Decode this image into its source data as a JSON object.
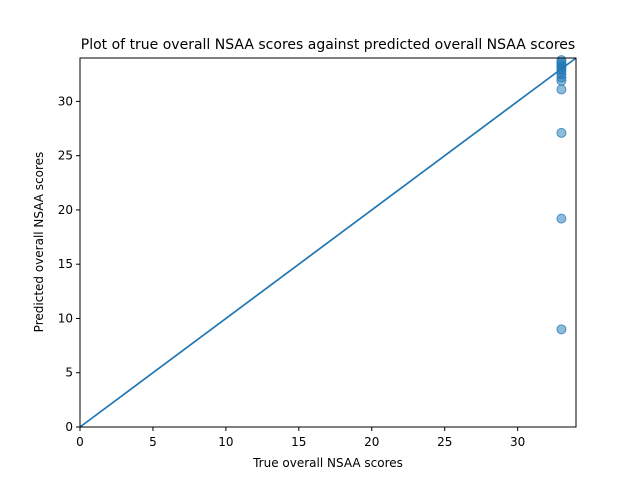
{
  "chart_data": {
    "type": "scatter",
    "title": "Plot of true overall NSAA scores against predicted overall NSAA scores",
    "xlabel": "True overall NSAA scores",
    "ylabel": "Predicted overall NSAA scores",
    "xlim": [
      0,
      34
    ],
    "ylim": [
      0,
      34
    ],
    "xticks": [
      0,
      5,
      10,
      15,
      20,
      25,
      30
    ],
    "yticks": [
      0,
      5,
      10,
      15,
      20,
      25,
      30
    ],
    "grid": false,
    "series": [
      {
        "marker": "circle",
        "color": "#1f77b4",
        "alpha": 0.5,
        "points": [
          {
            "x": 33,
            "y": 9.0
          },
          {
            "x": 33,
            "y": 19.2
          },
          {
            "x": 33,
            "y": 27.1
          },
          {
            "x": 33,
            "y": 31.1
          },
          {
            "x": 33,
            "y": 31.9
          },
          {
            "x": 33,
            "y": 32.2
          },
          {
            "x": 33,
            "y": 32.5
          },
          {
            "x": 33,
            "y": 32.8
          },
          {
            "x": 33,
            "y": 33.0
          },
          {
            "x": 33,
            "y": 33.2
          },
          {
            "x": 33,
            "y": 33.4
          },
          {
            "x": 33,
            "y": 33.6
          },
          {
            "x": 33,
            "y": 33.8
          }
        ]
      }
    ],
    "reference_line": {
      "type": "identity",
      "color": "#1f77b4",
      "from": [
        0,
        0
      ],
      "to": [
        34,
        34
      ]
    }
  }
}
